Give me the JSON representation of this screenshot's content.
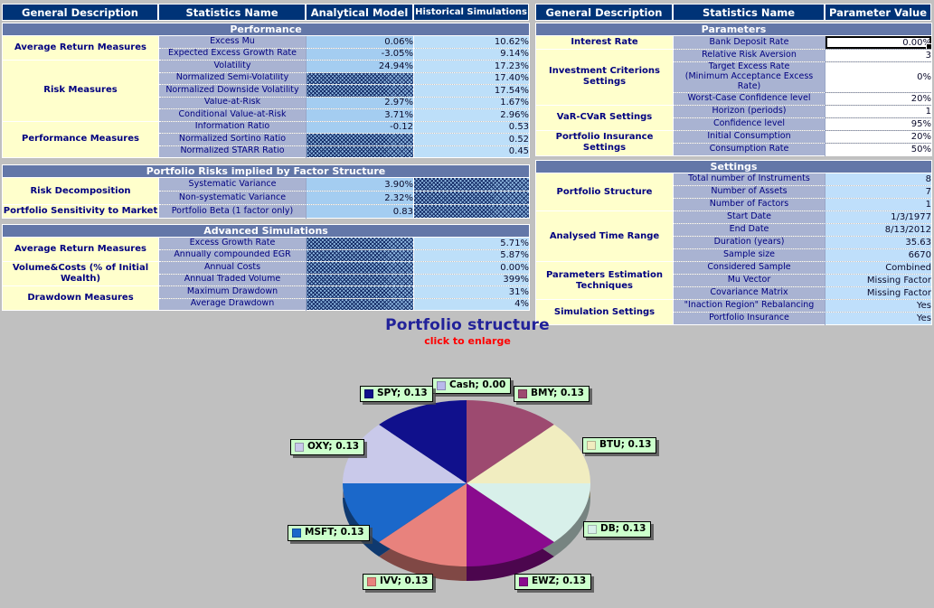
{
  "colors": {
    "page_bg": "#c0c0c0",
    "header_bg": "#003377",
    "section_bar": "#6377a8",
    "desc_bg": "#ffffcc",
    "name_bg": "#a9b3d2",
    "value_analytical": "#a4cdf1",
    "value_historical": "#bddff9",
    "value_setting": "#bfdffb",
    "label_box": "#ccffcc",
    "title": "#22229a",
    "subtitle": "#ff0000",
    "text_navy": "#000080"
  },
  "left_table": {
    "headers": [
      "General Description",
      "Statistics Name",
      "Analytical Model",
      "Historical Simulations"
    ],
    "sections": [
      {
        "title": "Performance",
        "groups": [
          {
            "label": "Average Return Measures",
            "rows": [
              [
                "Excess Mu",
                "0.06%",
                "10.62%"
              ],
              [
                "Expected Excess Growth Rate",
                "-3.05%",
                "9.14%"
              ]
            ]
          },
          {
            "label": "Risk Measures",
            "rows": [
              [
                "Volatility",
                "24.94%",
                "17.23%"
              ],
              [
                "Normalized Semi-Volatility",
                null,
                "17.40%"
              ],
              [
                "Normalized Downside Volatility",
                null,
                "17.54%"
              ],
              [
                "Value-at-Risk",
                "2.97%",
                "1.67%"
              ],
              [
                "Conditional Value-at-Risk",
                "3.71%",
                "2.96%"
              ]
            ]
          },
          {
            "label": "Performance Measures",
            "rows": [
              [
                "Information Ratio",
                "-0.12",
                "0.53"
              ],
              [
                "Normalized Sortino Ratio",
                null,
                "0.52"
              ],
              [
                "Normalized STARR Ratio",
                null,
                "0.45"
              ]
            ]
          }
        ]
      },
      {
        "title": "Portfolio Risks implied by Factor Structure",
        "groups": [
          {
            "label": "Risk Decomposition",
            "rows": [
              [
                "Systematic Variance",
                "3.90%",
                null
              ],
              [
                "Non-systematic Variance",
                "2.32%",
                null
              ]
            ]
          },
          {
            "label": "Portfolio Sensitivity to Market",
            "rows": [
              [
                "Portfolio Beta (1 factor only)",
                "0.83",
                null
              ]
            ]
          }
        ]
      },
      {
        "title": "Advanced Simulations",
        "groups": [
          {
            "label": "Average Return Measures",
            "rows": [
              [
                "Excess Growth Rate",
                null,
                "5.71%"
              ],
              [
                "Annually compounded EGR",
                null,
                "5.87%"
              ]
            ]
          },
          {
            "label": "Volume&Costs (% of Initial Wealth)",
            "rows": [
              [
                "Annual Costs",
                null,
                "0.00%"
              ],
              [
                "Annual Traded Volume",
                null,
                "399%"
              ]
            ]
          },
          {
            "label": "Drawdown Measures",
            "rows": [
              [
                "Maximum Drawdown",
                null,
                "31%"
              ],
              [
                "Average Drawdown",
                null,
                "4%"
              ]
            ]
          }
        ]
      }
    ]
  },
  "right_table": {
    "headers": [
      "General Description",
      "Statistics Name",
      "Parameter Value"
    ],
    "sections": [
      {
        "title": "Parameters",
        "value_style": "pval",
        "groups": [
          {
            "label": "Interest Rate",
            "rows": [
              {
                "name": "Bank Deposit Rate",
                "value": "0.00%",
                "active": true
              }
            ]
          },
          {
            "label": "Investment Criterions Settings",
            "rows": [
              {
                "name": "Relative Risk Aversion",
                "value": "3"
              },
              {
                "name": "Target Excess Rate",
                "name2": "(Minimum Acceptance Excess Rate)",
                "value": "0%",
                "tall": true
              },
              {
                "name": "Worst-Case Confidence level",
                "value": "20%"
              }
            ]
          },
          {
            "label": "VaR-CVaR Settings",
            "rows": [
              {
                "name": "Horizon (periods)",
                "value": "1"
              },
              {
                "name": "Confidence level",
                "value": "95%"
              }
            ]
          },
          {
            "label": "Portfolio Insurance Settings",
            "rows": [
              {
                "name": "Initial Consumption",
                "value": "20%"
              },
              {
                "name": "Consumption Rate",
                "value": "50%"
              }
            ]
          }
        ]
      },
      {
        "title": "Settings",
        "value_style": "sval",
        "groups": [
          {
            "label": "Portfolio Structure",
            "rows": [
              {
                "name": "Total number of Instruments",
                "value": "8"
              },
              {
                "name": "Number of Assets",
                "value": "7"
              },
              {
                "name": "Number of Factors",
                "value": "1"
              }
            ]
          },
          {
            "label": "Analysed Time Range",
            "rows": [
              {
                "name": "Start Date",
                "value": "1/3/1977"
              },
              {
                "name": "End Date",
                "value": "8/13/2012"
              },
              {
                "name": "Duration (years)",
                "value": "35.63"
              },
              {
                "name": "Sample size",
                "value": "6670"
              }
            ]
          },
          {
            "label": "Parameters Estimation Techniques",
            "rows": [
              {
                "name": "Considered Sample",
                "value": "Combined"
              },
              {
                "name": "Mu Vector",
                "value": "Missing Factor"
              },
              {
                "name": "Covariance Matrix",
                "value": "Missing Factor"
              }
            ]
          },
          {
            "label": "Simulation Settings",
            "rows": [
              {
                "name": "\"Inaction Region\" Rebalancing",
                "value": "Yes"
              },
              {
                "name": "Portfolio Insurance",
                "value": "Yes"
              }
            ]
          }
        ]
      }
    ]
  },
  "chart_data": {
    "type": "pie",
    "title": "Portfolio structure",
    "subtitle": "click to enlarge",
    "legend_position": "around-slices",
    "slices": [
      {
        "label": "Cash",
        "display": "Cash; 0.00",
        "value": 0,
        "color": "#b9b9ec"
      },
      {
        "label": "BMY",
        "display": "BMY; 0.13",
        "value": 0.125,
        "color": "#9d4a70"
      },
      {
        "label": "BTU",
        "display": "BTU; 0.13",
        "value": 0.125,
        "color": "#f1edc0"
      },
      {
        "label": "DB",
        "display": "DB; 0.13",
        "value": 0.125,
        "color": "#d8f0ea"
      },
      {
        "label": "EWZ",
        "display": "EWZ; 0.13",
        "value": 0.125,
        "color": "#8a0b8e"
      },
      {
        "label": "IVV",
        "display": "IVV; 0.13",
        "value": 0.125,
        "color": "#e8827d"
      },
      {
        "label": "MSFT",
        "display": "MSFT; 0.13",
        "value": 0.125,
        "color": "#1b68ca"
      },
      {
        "label": "OXY",
        "display": "OXY; 0.13",
        "value": 0.125,
        "color": "#c9c9ea"
      },
      {
        "label": "SPY",
        "display": "SPY; 0.13",
        "value": 0.125,
        "color": "#10108c"
      }
    ]
  }
}
